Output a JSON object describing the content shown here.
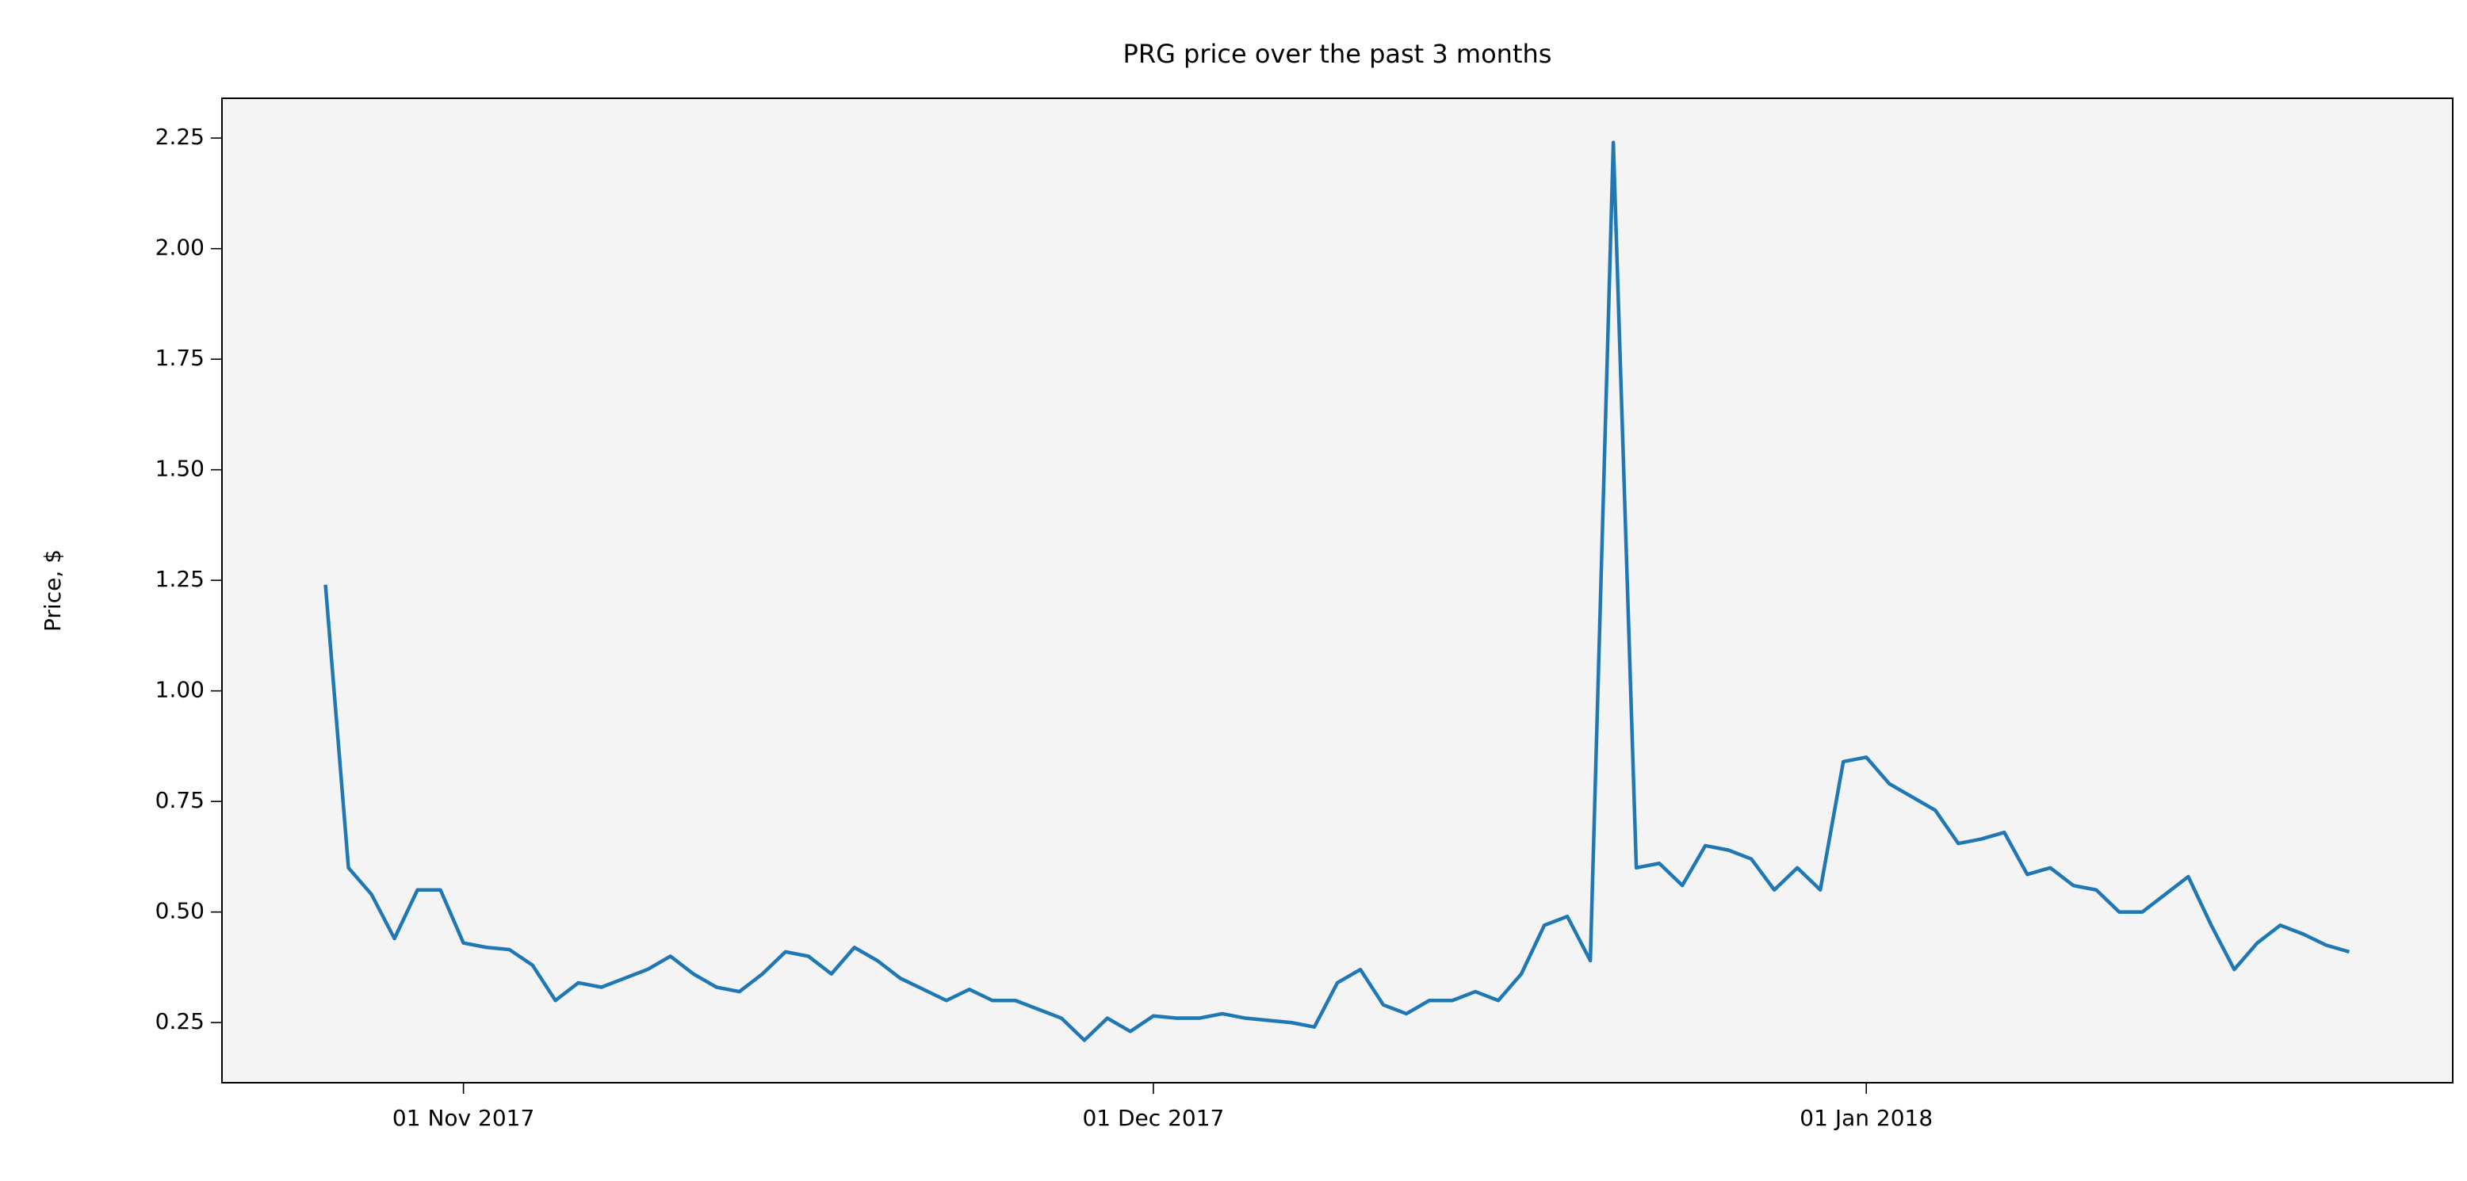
{
  "chart_data": {
    "type": "line",
    "title": "PRG price over the past 3 months",
    "ylabel": "Price, $",
    "x": [
      "2017-10-26",
      "2017-10-27",
      "2017-10-28",
      "2017-10-29",
      "2017-10-30",
      "2017-10-31",
      "2017-11-01",
      "2017-11-02",
      "2017-11-03",
      "2017-11-04",
      "2017-11-05",
      "2017-11-06",
      "2017-11-07",
      "2017-11-08",
      "2017-11-09",
      "2017-11-10",
      "2017-11-11",
      "2017-11-12",
      "2017-11-13",
      "2017-11-14",
      "2017-11-15",
      "2017-11-16",
      "2017-11-17",
      "2017-11-18",
      "2017-11-19",
      "2017-11-20",
      "2017-11-21",
      "2017-11-22",
      "2017-11-23",
      "2017-11-24",
      "2017-11-25",
      "2017-11-26",
      "2017-11-27",
      "2017-11-28",
      "2017-11-29",
      "2017-11-30",
      "2017-12-01",
      "2017-12-02",
      "2017-12-03",
      "2017-12-04",
      "2017-12-05",
      "2017-12-06",
      "2017-12-07",
      "2017-12-08",
      "2017-12-09",
      "2017-12-10",
      "2017-12-11",
      "2017-12-12",
      "2017-12-13",
      "2017-12-14",
      "2017-12-15",
      "2017-12-16",
      "2017-12-17",
      "2017-12-18",
      "2017-12-19",
      "2017-12-20",
      "2017-12-21",
      "2017-12-22",
      "2017-12-23",
      "2017-12-24",
      "2017-12-25",
      "2017-12-26",
      "2017-12-27",
      "2017-12-28",
      "2017-12-29",
      "2017-12-30",
      "2017-12-31",
      "2018-01-01",
      "2018-01-02",
      "2018-01-03",
      "2018-01-04",
      "2018-01-05",
      "2018-01-06",
      "2018-01-07",
      "2018-01-08",
      "2018-01-09",
      "2018-01-10",
      "2018-01-11",
      "2018-01-12",
      "2018-01-13",
      "2018-01-14",
      "2018-01-15",
      "2018-01-16",
      "2018-01-17",
      "2018-01-18",
      "2018-01-19",
      "2018-01-20",
      "2018-01-21",
      "2018-01-22"
    ],
    "values": [
      1.24,
      0.6,
      0.54,
      0.44,
      0.55,
      0.55,
      0.43,
      0.42,
      0.415,
      0.38,
      0.3,
      0.34,
      0.33,
      0.35,
      0.37,
      0.4,
      0.36,
      0.33,
      0.32,
      0.36,
      0.41,
      0.4,
      0.36,
      0.42,
      0.39,
      0.35,
      0.325,
      0.3,
      0.325,
      0.3,
      0.3,
      0.28,
      0.26,
      0.21,
      0.26,
      0.23,
      0.265,
      0.26,
      0.26,
      0.27,
      0.26,
      0.255,
      0.25,
      0.24,
      0.34,
      0.37,
      0.29,
      0.27,
      0.3,
      0.3,
      0.32,
      0.3,
      0.36,
      0.47,
      0.49,
      0.39,
      2.24,
      0.6,
      0.61,
      0.56,
      0.65,
      0.64,
      0.62,
      0.55,
      0.6,
      0.55,
      0.84,
      0.85,
      0.79,
      0.76,
      0.73,
      0.655,
      0.665,
      0.68,
      0.585,
      0.6,
      0.56,
      0.55,
      0.5,
      0.5,
      0.54,
      0.58,
      0.47,
      0.37,
      0.43,
      0.47,
      0.45,
      0.425,
      0.41
    ],
    "color": "#1f77b4",
    "background": "#f4f4f4",
    "xlim": [
      "2017-10-21T12:00",
      "2018-01-26T12:00"
    ],
    "xticks": [
      {
        "value": "2017-11-01",
        "label": "01 Nov 2017"
      },
      {
        "value": "2017-12-01",
        "label": "01 Dec 2017"
      },
      {
        "value": "2018-01-01",
        "label": "01 Jan 2018"
      }
    ],
    "ylim": [
      0.114,
      2.34
    ],
    "yticks": [
      0.25,
      {
        "value": 0.5,
        "label": "0.50"
      },
      0.75,
      {
        "value": 1.0,
        "label": "1.00"
      },
      1.25,
      {
        "value": 1.5,
        "label": "1.50"
      },
      1.75,
      {
        "value": 2.0,
        "label": "2.00"
      },
      2.25
    ],
    "grid": false
  }
}
